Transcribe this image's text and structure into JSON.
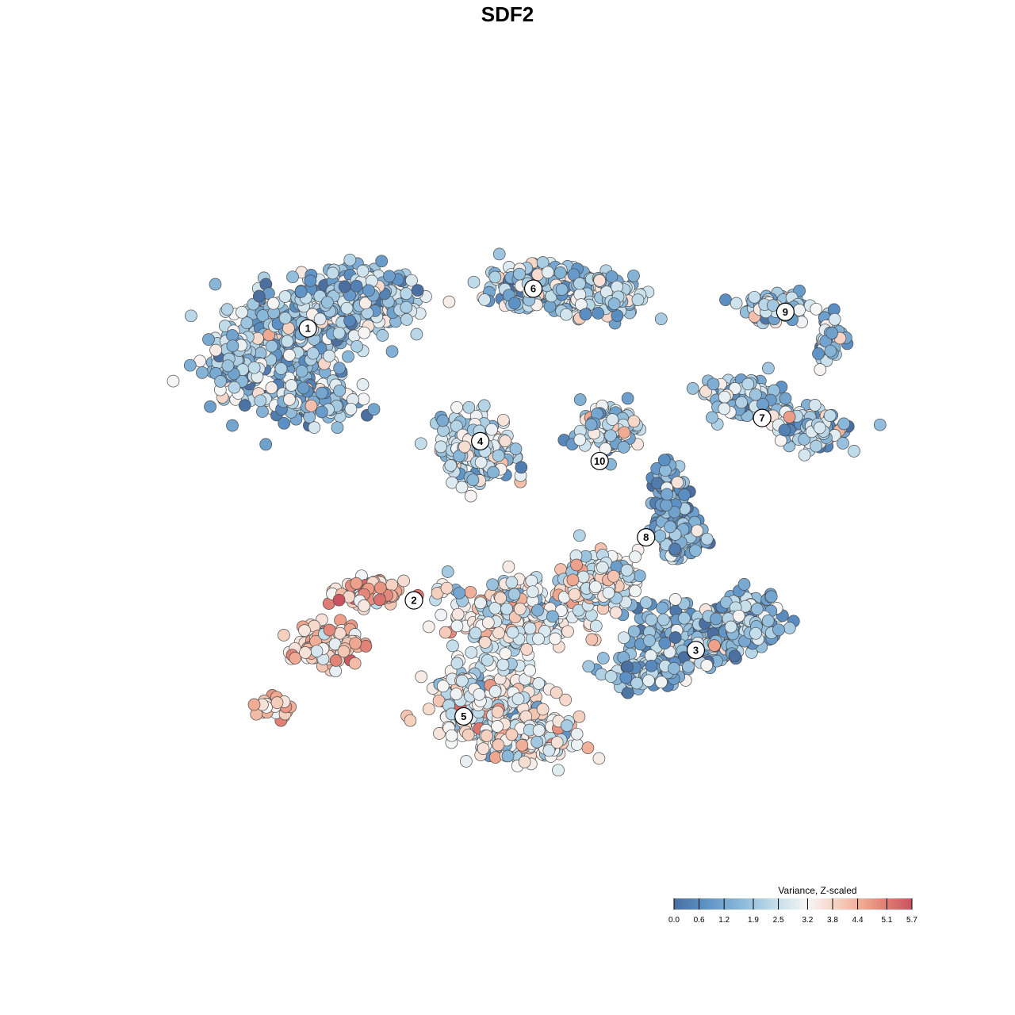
{
  "chart_data": {
    "type": "scatter",
    "title": "SDF2",
    "legend": {
      "title": "Variance, Z-scaled",
      "ticks": [
        "0.0",
        "0.6",
        "1.2",
        "1.9",
        "2.5",
        "3.2",
        "3.8",
        "4.4",
        "5.1",
        "5.7"
      ],
      "range": [
        0.0,
        5.7
      ],
      "placement": "bottom-right",
      "colors": [
        "#4a6fa0",
        "#5b8fc4",
        "#8ab8d9",
        "#c0dcea",
        "#f6f6f6",
        "#f6d3c3",
        "#efa58d",
        "#de7a72",
        "#c9535f"
      ]
    },
    "clusters": [
      {
        "label": "1",
        "x": -6.5,
        "y": 5.4,
        "mean_value": 1.7
      },
      {
        "label": "2",
        "x": -3.3,
        "y": -2.8,
        "mean_value": 3.6
      },
      {
        "label": "3",
        "x": 5.2,
        "y": -4.3,
        "mean_value": 1.5
      },
      {
        "label": "4",
        "x": -1.3,
        "y": 2.0,
        "mean_value": 2.2
      },
      {
        "label": "5",
        "x": -1.8,
        "y": -6.3,
        "mean_value": 2.7
      },
      {
        "label": "6",
        "x": 0.3,
        "y": 6.6,
        "mean_value": 1.9
      },
      {
        "label": "7",
        "x": 7.2,
        "y": 2.7,
        "mean_value": 1.8
      },
      {
        "label": "8",
        "x": 3.7,
        "y": -0.9,
        "mean_value": 1.2
      },
      {
        "label": "9",
        "x": 7.9,
        "y": 5.9,
        "mean_value": 1.9
      },
      {
        "label": "10",
        "x": 2.3,
        "y": 1.4,
        "mean_value": 2.1
      }
    ],
    "xlim": [
      -11,
      11
    ],
    "ylim": [
      -11,
      11
    ],
    "grid": false,
    "axes_visible": false
  }
}
